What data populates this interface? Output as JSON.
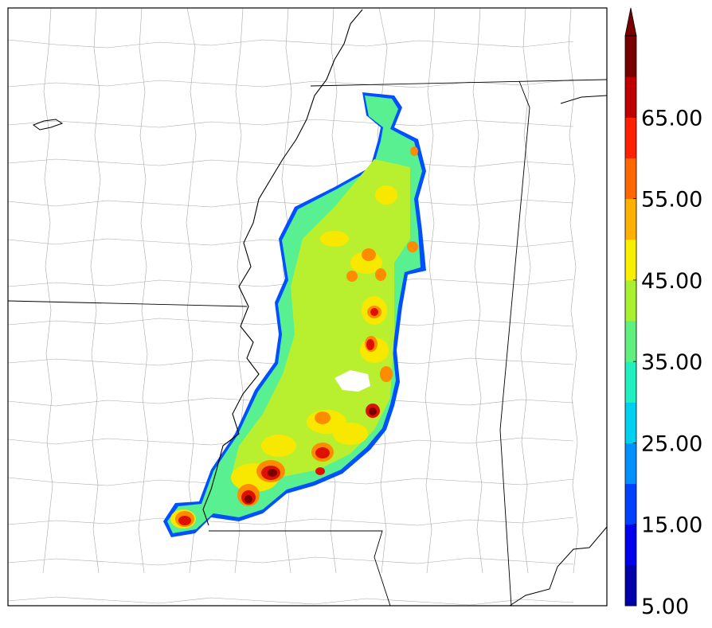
{
  "colorbar": {
    "tick_labels": [
      "5.00",
      "15.00",
      "25.00",
      "35.00",
      "45.00",
      "55.00",
      "65.00"
    ],
    "colors": [
      "#0000aa",
      "#0000ee",
      "#0040ff",
      "#0090ff",
      "#00d0f0",
      "#20f0c0",
      "#60f080",
      "#a8f030",
      "#f8f000",
      "#ffb000",
      "#ff6800",
      "#ff2000",
      "#c00000",
      "#7a0000"
    ],
    "extend": "max",
    "units_label": ""
  },
  "map": {
    "colors": {
      "background": "#ffffff",
      "county_lines": "#9a9a9a",
      "state_lines": "#000000",
      "river": "#000000"
    }
  }
}
